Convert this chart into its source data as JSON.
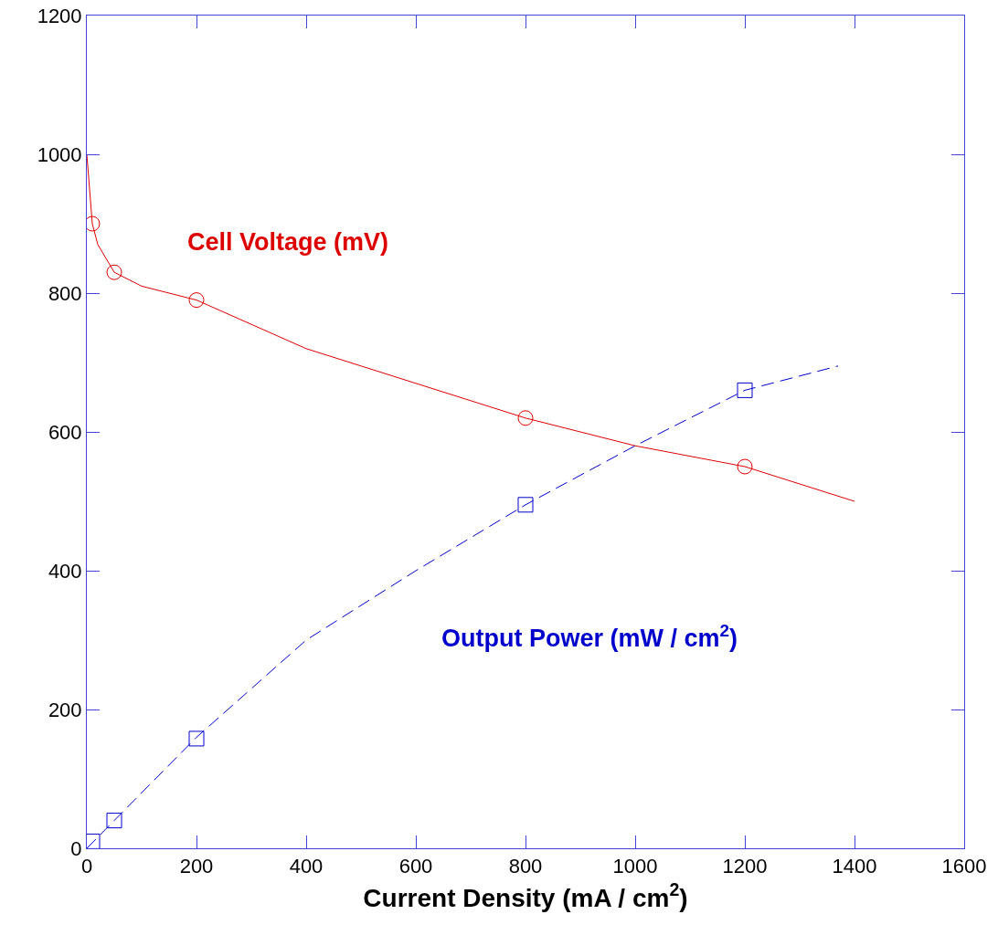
{
  "chart_data": {
    "type": "line",
    "xlabel": "Current Density (mA / cm$^{2}$)",
    "xlim": [
      0,
      1600
    ],
    "xticks": [
      0,
      200,
      400,
      600,
      800,
      1000,
      1200,
      1400,
      1600
    ],
    "ylim": [
      0,
      1200
    ],
    "yticks": [
      0,
      200,
      400,
      600,
      800,
      1000,
      1200
    ],
    "grid": false,
    "series": [
      {
        "name": "Cell Voltage (mV)",
        "color": "#dd0000",
        "line_style": "solid",
        "marker": "none",
        "x": [
          0,
          10,
          20,
          50,
          100,
          200,
          400,
          800,
          1000,
          1200,
          1400
        ],
        "values": [
          1000,
          900,
          870,
          830,
          810,
          790,
          720,
          620,
          580,
          550,
          500
        ]
      },
      {
        "type": "scatter",
        "color": "#dd0000",
        "marker": "circle",
        "x": [
          10,
          50,
          200,
          800,
          1200
        ],
        "values": [
          900,
          830,
          790,
          620,
          550
        ]
      },
      {
        "name": "Output Power (mW / cm$^{2}$)",
        "color": "#0000cc",
        "line_style": "dashed",
        "marker": "none",
        "x": [
          0,
          50,
          200,
          400,
          600,
          800,
          1000,
          1200,
          1370
        ],
        "values": [
          0,
          40,
          160,
          300,
          400,
          495,
          580,
          660,
          695
        ]
      },
      {
        "type": "scatter",
        "color": "#0000cc",
        "marker": "square",
        "x": [
          10,
          50,
          200,
          800,
          1200
        ],
        "values": [
          10,
          40,
          158,
          495,
          660
        ]
      }
    ]
  }
}
